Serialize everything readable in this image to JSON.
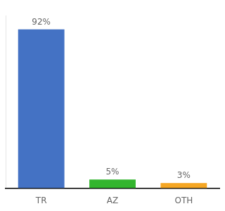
{
  "chart_data": {
    "type": "bar",
    "categories": [
      "TR",
      "AZ",
      "OTH"
    ],
    "values": [
      92,
      5,
      3
    ],
    "value_labels": [
      "92%",
      "5%",
      "3%"
    ],
    "colors": [
      "#4472c4",
      "#33b52e",
      "#f5a623"
    ],
    "ylim": [
      0,
      100
    ],
    "grid": false,
    "data_labels": true,
    "tick_labels": "x"
  }
}
